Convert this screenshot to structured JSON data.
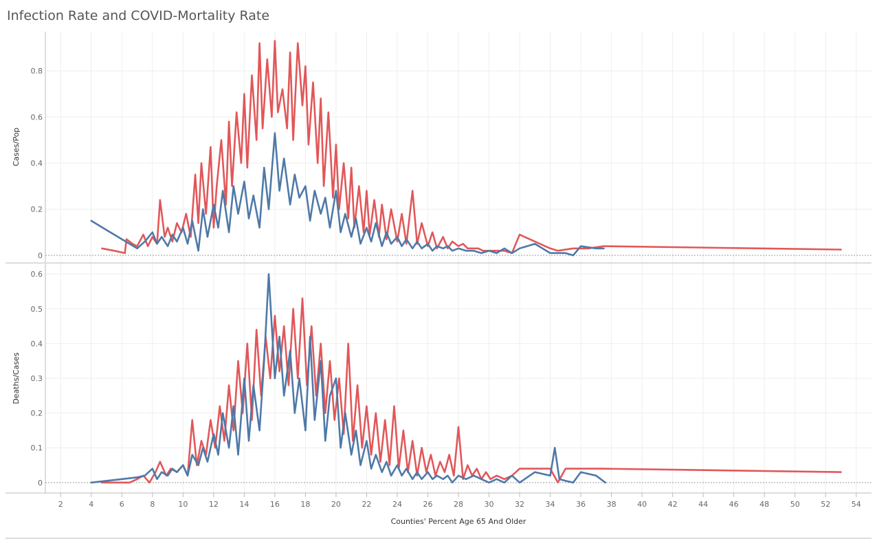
{
  "title": "Infection Rate and COVID-Mortality Rate",
  "colors": {
    "red": "#e15759",
    "blue": "#4e79a7",
    "grid": "#eeeeee",
    "axis": "#bbbbbb",
    "zero": "#999999"
  },
  "chart_data": [
    {
      "type": "line",
      "panel": "top",
      "xlabel": "Counties' Percent Age 65 And Older",
      "ylabel": "Cases/Pop",
      "xlim": [
        1,
        55
      ],
      "ylim": [
        -0.03,
        0.97
      ],
      "xticks": [
        2,
        4,
        6,
        8,
        10,
        12,
        14,
        16,
        18,
        20,
        22,
        24,
        26,
        28,
        30,
        32,
        34,
        36,
        38,
        40,
        42,
        44,
        46,
        48,
        50,
        52,
        54
      ],
      "yticks": [
        0,
        0.2,
        0.4,
        0.6,
        0.8
      ],
      "grid": true,
      "series": [
        {
          "color": "red",
          "x": [
            4.7,
            5.5,
            6.2,
            6.3,
            6.7,
            7.0,
            7.4,
            7.7,
            8.0,
            8.3,
            8.5,
            8.8,
            9.0,
            9.3,
            9.6,
            9.9,
            10.2,
            10.5,
            10.8,
            11.0,
            11.2,
            11.5,
            11.8,
            12.0,
            12.2,
            12.5,
            12.8,
            13.0,
            13.2,
            13.5,
            13.8,
            14.0,
            14.2,
            14.5,
            14.8,
            15.0,
            15.2,
            15.5,
            15.8,
            16.0,
            16.2,
            16.5,
            16.8,
            17.0,
            17.2,
            17.5,
            17.8,
            18.0,
            18.2,
            18.5,
            18.8,
            19.0,
            19.2,
            19.5,
            19.8,
            20.0,
            20.2,
            20.5,
            20.8,
            21.0,
            21.2,
            21.5,
            21.8,
            22.0,
            22.2,
            22.5,
            22.8,
            23.0,
            23.3,
            23.6,
            24.0,
            24.3,
            24.6,
            25.0,
            25.3,
            25.6,
            26.0,
            26.3,
            26.6,
            27.0,
            27.3,
            27.6,
            28.0,
            28.3,
            28.6,
            29.0,
            29.3,
            29.6,
            30.0,
            30.5,
            31.0,
            31.5,
            32.0,
            33.0,
            34.0,
            34.5,
            35.5,
            36.5,
            37.5,
            53.0
          ],
          "values": [
            0.03,
            0.02,
            0.01,
            0.07,
            0.05,
            0.04,
            0.09,
            0.04,
            0.08,
            0.05,
            0.24,
            0.08,
            0.12,
            0.06,
            0.14,
            0.1,
            0.18,
            0.08,
            0.35,
            0.14,
            0.4,
            0.18,
            0.47,
            0.12,
            0.3,
            0.5,
            0.22,
            0.58,
            0.3,
            0.62,
            0.4,
            0.7,
            0.38,
            0.78,
            0.5,
            0.92,
            0.55,
            0.85,
            0.6,
            0.93,
            0.62,
            0.72,
            0.55,
            0.88,
            0.5,
            0.92,
            0.65,
            0.82,
            0.48,
            0.75,
            0.4,
            0.68,
            0.3,
            0.62,
            0.25,
            0.48,
            0.2,
            0.4,
            0.16,
            0.38,
            0.12,
            0.3,
            0.1,
            0.28,
            0.09,
            0.24,
            0.08,
            0.22,
            0.07,
            0.2,
            0.06,
            0.18,
            0.05,
            0.28,
            0.05,
            0.14,
            0.04,
            0.1,
            0.03,
            0.08,
            0.03,
            0.06,
            0.04,
            0.05,
            0.03,
            0.03,
            0.03,
            0.02,
            0.02,
            0.02,
            0.02,
            0.01,
            0.09,
            0.06,
            0.03,
            0.02,
            0.03,
            0.03,
            0.04,
            0.025
          ]
        },
        {
          "color": "blue",
          "x": [
            4.0,
            5.0,
            6.0,
            7.0,
            7.5,
            8.0,
            8.3,
            8.6,
            9.0,
            9.3,
            9.6,
            10.0,
            10.3,
            10.6,
            11.0,
            11.3,
            11.6,
            12.0,
            12.3,
            12.6,
            13.0,
            13.3,
            13.6,
            14.0,
            14.3,
            14.6,
            15.0,
            15.3,
            15.6,
            16.0,
            16.3,
            16.6,
            17.0,
            17.3,
            17.6,
            18.0,
            18.3,
            18.6,
            19.0,
            19.3,
            19.6,
            20.0,
            20.3,
            20.6,
            21.0,
            21.3,
            21.6,
            22.0,
            22.3,
            22.6,
            23.0,
            23.3,
            23.6,
            24.0,
            24.3,
            24.6,
            25.0,
            25.3,
            25.6,
            26.0,
            26.3,
            26.6,
            27.0,
            27.3,
            27.6,
            28.0,
            28.5,
            29.0,
            29.5,
            30.0,
            30.5,
            31.0,
            31.5,
            32.0,
            33.0,
            34.0,
            35.0,
            35.5,
            36.0,
            37.0,
            37.5
          ],
          "values": [
            0.15,
            0.11,
            0.07,
            0.03,
            0.06,
            0.1,
            0.05,
            0.08,
            0.04,
            0.09,
            0.06,
            0.12,
            0.05,
            0.15,
            0.02,
            0.2,
            0.08,
            0.22,
            0.12,
            0.28,
            0.1,
            0.3,
            0.18,
            0.32,
            0.16,
            0.26,
            0.12,
            0.38,
            0.2,
            0.53,
            0.28,
            0.42,
            0.22,
            0.35,
            0.25,
            0.3,
            0.15,
            0.28,
            0.18,
            0.25,
            0.12,
            0.28,
            0.1,
            0.18,
            0.08,
            0.16,
            0.05,
            0.12,
            0.06,
            0.14,
            0.04,
            0.1,
            0.05,
            0.08,
            0.04,
            0.07,
            0.03,
            0.06,
            0.03,
            0.05,
            0.02,
            0.04,
            0.03,
            0.04,
            0.02,
            0.03,
            0.02,
            0.02,
            0.01,
            0.02,
            0.01,
            0.03,
            0.01,
            0.03,
            0.05,
            0.01,
            0.01,
            0.0,
            0.04,
            0.03,
            0.03
          ]
        }
      ]
    },
    {
      "type": "line",
      "panel": "bottom",
      "xlabel": "Counties' Percent Age 65 And Older",
      "ylabel": "Deaths/Cases",
      "xlim": [
        1,
        55
      ],
      "ylim": [
        -0.03,
        0.63
      ],
      "xticks": [
        2,
        4,
        6,
        8,
        10,
        12,
        14,
        16,
        18,
        20,
        22,
        24,
        26,
        28,
        30,
        32,
        34,
        36,
        38,
        40,
        42,
        44,
        46,
        48,
        50,
        52,
        54
      ],
      "yticks": [
        0,
        0.1,
        0.2,
        0.3,
        0.4,
        0.5,
        0.6
      ],
      "grid": true,
      "series": [
        {
          "color": "red",
          "x": [
            4.7,
            5.5,
            6.5,
            7.0,
            7.4,
            7.8,
            8.2,
            8.5,
            8.9,
            9.2,
            9.6,
            10.0,
            10.3,
            10.6,
            10.9,
            11.2,
            11.5,
            11.8,
            12.1,
            12.4,
            12.7,
            13.0,
            13.3,
            13.6,
            13.9,
            14.2,
            14.5,
            14.8,
            15.1,
            15.4,
            15.7,
            16.0,
            16.3,
            16.6,
            16.9,
            17.2,
            17.5,
            17.8,
            18.1,
            18.4,
            18.7,
            19.0,
            19.3,
            19.6,
            19.9,
            20.2,
            20.5,
            20.8,
            21.1,
            21.4,
            21.7,
            22.0,
            22.3,
            22.6,
            22.9,
            23.2,
            23.5,
            23.8,
            24.1,
            24.4,
            24.7,
            25.0,
            25.3,
            25.6,
            25.9,
            26.2,
            26.5,
            26.8,
            27.1,
            27.4,
            27.7,
            28.0,
            28.3,
            28.6,
            28.9,
            29.2,
            29.5,
            29.8,
            30.1,
            30.5,
            31.0,
            31.5,
            32.0,
            33.0,
            34.0,
            34.5,
            35.0,
            37.5,
            53.0
          ],
          "values": [
            0.0,
            0.0,
            0.0,
            0.01,
            0.02,
            0.0,
            0.03,
            0.06,
            0.02,
            0.04,
            0.03,
            0.05,
            0.02,
            0.18,
            0.05,
            0.12,
            0.08,
            0.18,
            0.1,
            0.22,
            0.12,
            0.28,
            0.15,
            0.35,
            0.2,
            0.4,
            0.18,
            0.44,
            0.25,
            0.42,
            0.3,
            0.48,
            0.32,
            0.45,
            0.28,
            0.5,
            0.3,
            0.53,
            0.28,
            0.45,
            0.25,
            0.4,
            0.2,
            0.35,
            0.18,
            0.3,
            0.14,
            0.4,
            0.12,
            0.28,
            0.1,
            0.22,
            0.08,
            0.2,
            0.06,
            0.18,
            0.05,
            0.22,
            0.04,
            0.15,
            0.03,
            0.12,
            0.02,
            0.1,
            0.03,
            0.08,
            0.02,
            0.06,
            0.03,
            0.08,
            0.02,
            0.16,
            0.01,
            0.05,
            0.02,
            0.04,
            0.01,
            0.03,
            0.01,
            0.02,
            0.01,
            0.02,
            0.04,
            0.04,
            0.04,
            0.0,
            0.04,
            0.04,
            0.03
          ]
        },
        {
          "color": "blue",
          "x": [
            4.0,
            5.0,
            6.0,
            7.0,
            7.5,
            8.0,
            8.3,
            8.6,
            9.0,
            9.3,
            9.6,
            10.0,
            10.3,
            10.6,
            11.0,
            11.3,
            11.6,
            12.0,
            12.3,
            12.6,
            13.0,
            13.3,
            13.6,
            14.0,
            14.3,
            14.6,
            15.0,
            15.3,
            15.6,
            16.0,
            16.3,
            16.6,
            17.0,
            17.3,
            17.6,
            18.0,
            18.3,
            18.6,
            19.0,
            19.3,
            19.6,
            20.0,
            20.3,
            20.6,
            21.0,
            21.3,
            21.6,
            22.0,
            22.3,
            22.6,
            23.0,
            23.3,
            23.6,
            24.0,
            24.3,
            24.6,
            25.0,
            25.3,
            25.6,
            26.0,
            26.3,
            26.6,
            27.0,
            27.3,
            27.6,
            28.0,
            28.5,
            29.0,
            29.5,
            30.0,
            30.5,
            31.0,
            31.5,
            32.0,
            33.0,
            34.0,
            34.3,
            34.6,
            35.0,
            35.5,
            36.0,
            37.0,
            37.6
          ],
          "values": [
            0.0,
            0.005,
            0.01,
            0.015,
            0.02,
            0.04,
            0.01,
            0.03,
            0.02,
            0.04,
            0.03,
            0.05,
            0.02,
            0.08,
            0.05,
            0.1,
            0.06,
            0.14,
            0.08,
            0.2,
            0.1,
            0.22,
            0.08,
            0.3,
            0.12,
            0.28,
            0.15,
            0.35,
            0.6,
            0.3,
            0.42,
            0.25,
            0.38,
            0.2,
            0.3,
            0.15,
            0.42,
            0.18,
            0.35,
            0.12,
            0.25,
            0.3,
            0.1,
            0.2,
            0.08,
            0.15,
            0.05,
            0.12,
            0.04,
            0.08,
            0.03,
            0.06,
            0.02,
            0.05,
            0.02,
            0.04,
            0.01,
            0.03,
            0.01,
            0.03,
            0.01,
            0.02,
            0.01,
            0.02,
            0.0,
            0.02,
            0.01,
            0.02,
            0.01,
            0.0,
            0.01,
            0.0,
            0.02,
            0.0,
            0.03,
            0.02,
            0.1,
            0.01,
            0.005,
            0.0,
            0.03,
            0.02,
            0.0
          ]
        }
      ]
    }
  ]
}
